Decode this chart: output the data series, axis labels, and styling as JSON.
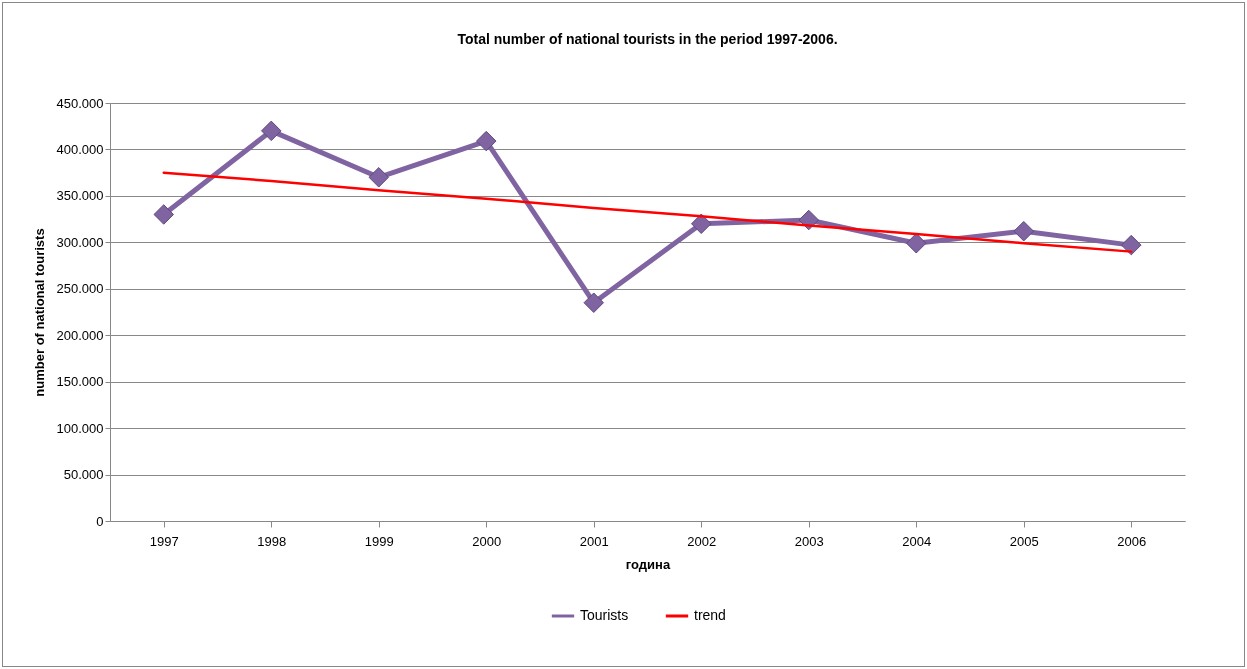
{
  "chart_data": {
    "type": "line",
    "title": "Total number of national tourists in the period 1997-2006.",
    "xlabel": "година",
    "ylabel": "number of national tourists",
    "categories": [
      "1997",
      "1998",
      "1999",
      "2000",
      "2001",
      "2002",
      "2003",
      "2004",
      "2005",
      "2006"
    ],
    "series": [
      {
        "name": "Tourists",
        "color": "#8064a2",
        "values": [
          330000,
          420000,
          370000,
          409000,
          235000,
          320000,
          324000,
          299000,
          312000,
          297000
        ],
        "marker": "diamond"
      },
      {
        "name": "trend",
        "type": "line",
        "color": "#ff0000",
        "values": [
          375000,
          366000,
          356000,
          347000,
          337000,
          328000,
          318000,
          309000,
          299000,
          290000
        ],
        "marker": "none"
      }
    ],
    "ylim": [
      0,
      450000
    ],
    "yticks": [
      {
        "value": 0,
        "label": "0"
      },
      {
        "value": 50000,
        "label": "50.000"
      },
      {
        "value": 100000,
        "label": "100.000"
      },
      {
        "value": 150000,
        "label": "150.000"
      },
      {
        "value": 200000,
        "label": "200.000"
      },
      {
        "value": 250000,
        "label": "250.000"
      },
      {
        "value": 300000,
        "label": "300.000"
      },
      {
        "value": 350000,
        "label": "350.000"
      },
      {
        "value": 400000,
        "label": "400.000"
      },
      {
        "value": 450000,
        "label": "450.000"
      }
    ],
    "grid": "y",
    "legend": "bottom"
  }
}
